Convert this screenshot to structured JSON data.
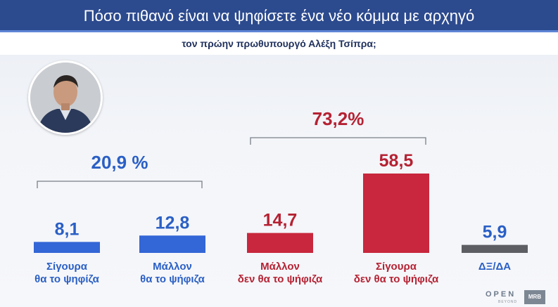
{
  "header": {
    "title": "Πόσο πιθανό είναι να ψηφίσετε ένα νέο κόμμα με αρχηγό",
    "subtitle": "τον πρώην πρωθυπουργό Αλέξη Τσίπρα;"
  },
  "branding": {
    "logo": "OPEN",
    "logo_sub": "BEYOND",
    "pollster": "MRB"
  },
  "colors": {
    "title_bar": "#2c4a8e",
    "blue": "#3366d6",
    "red": "#c8273d",
    "grey": "#5c5e63",
    "label_blue": "#2a5fc5",
    "label_red": "#b52233"
  },
  "chart_data": {
    "type": "bar",
    "title": "Πόσο πιθανό είναι να ψηφίσετε ένα νέο κόμμα με αρχηγό τον πρώην πρωθυπουργό Αλέξη Τσίπρα;",
    "categories": [
      [
        "Σίγουρα",
        "θα το ψηφίζα"
      ],
      [
        "Μάλλον",
        "θα το ψήφιζα"
      ],
      [
        "Μάλλον",
        "δεν θα το ψήφιζα"
      ],
      [
        "Σίγουρα",
        "δεν θα το ψήφιζα"
      ],
      [
        "ΔΞ/ΔΑ"
      ]
    ],
    "values": [
      8.1,
      12.8,
      14.7,
      58.5,
      5.9
    ],
    "value_labels": [
      "8,1",
      "12,8",
      "14,7",
      "58,5",
      "5,9"
    ],
    "bar_colors": [
      "blue",
      "blue",
      "red",
      "red",
      "grey"
    ],
    "groups": [
      {
        "label": "20,9 %",
        "bars": [
          0,
          1
        ],
        "color": "blue"
      },
      {
        "label": "73,2%",
        "bars": [
          2,
          3
        ],
        "color": "red"
      }
    ],
    "ylim": [
      0,
      60
    ],
    "grid": false,
    "legend": "none"
  }
}
